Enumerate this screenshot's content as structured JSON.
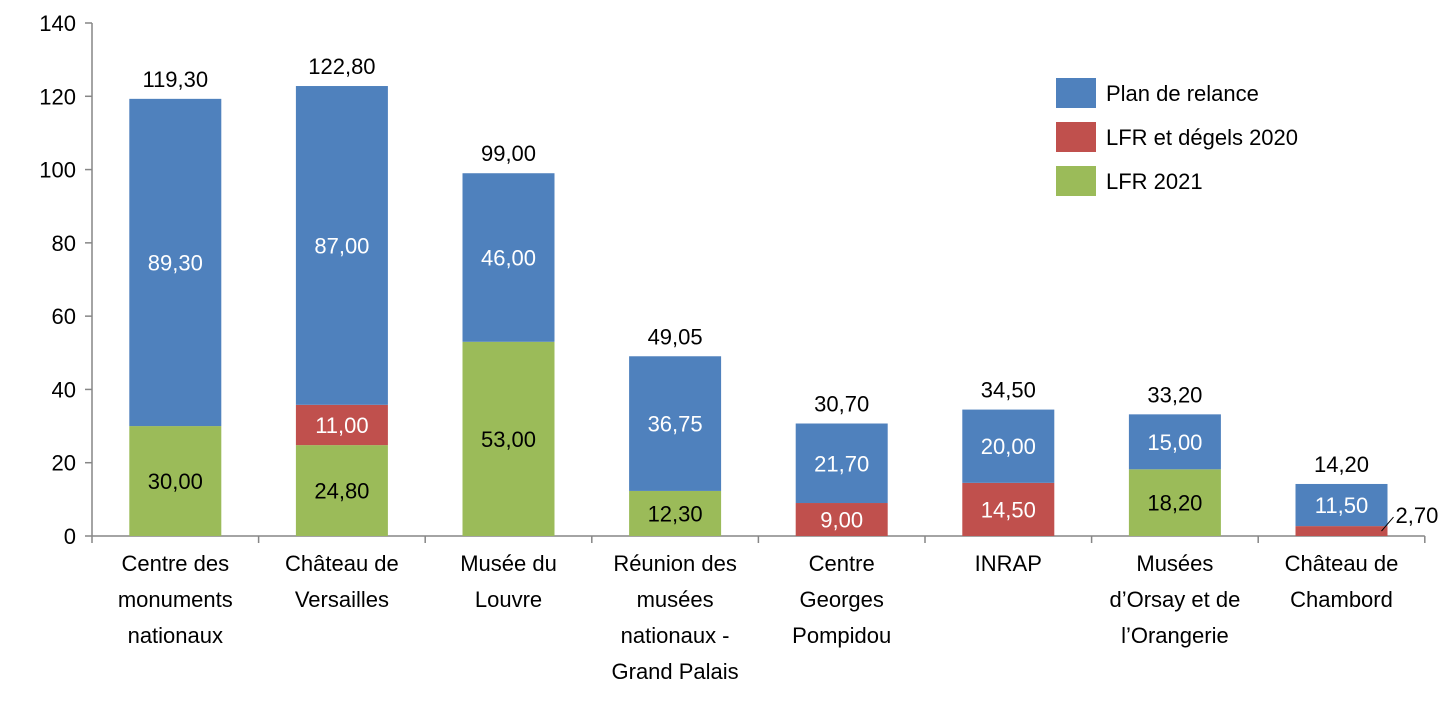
{
  "chart_data": {
    "type": "bar",
    "stacked": true,
    "ylim": [
      0,
      140
    ],
    "yticks": [
      0,
      20,
      40,
      60,
      80,
      100,
      120,
      140
    ],
    "grid": false,
    "legend_position": "top-right",
    "categories": [
      "Centre des monuments nationaux",
      "Château de Versailles",
      "Musée du Louvre",
      "Réunion des musées nationaux - Grand Palais",
      "Centre Georges Pompidou",
      "INRAP",
      "Musées d’Orsay et de l’Orangerie",
      "Château de Chambord"
    ],
    "category_lines": [
      [
        "Centre des",
        "monuments",
        "nationaux"
      ],
      [
        "Château de",
        "Versailles"
      ],
      [
        "Musée du",
        "Louvre"
      ],
      [
        "Réunion des",
        "musées",
        "nationaux -",
        "Grand Palais"
      ],
      [
        "Centre",
        "Georges",
        "Pompidou"
      ],
      [
        "INRAP"
      ],
      [
        "Musées",
        "d’Orsay et de",
        "l’Orangerie"
      ],
      [
        "Château de",
        "Chambord"
      ]
    ],
    "series": [
      {
        "name": "LFR 2021",
        "color": "#9BBB59",
        "values": [
          30.0,
          24.8,
          53.0,
          12.3,
          null,
          null,
          18.2,
          null
        ],
        "labels": [
          "30,00",
          "24,80",
          "53,00",
          "12,30",
          "",
          "",
          "18,20",
          ""
        ]
      },
      {
        "name": "LFR et dégels 2020",
        "color": "#C0504D",
        "values": [
          null,
          11.0,
          null,
          null,
          9.0,
          14.5,
          null,
          2.7
        ],
        "labels": [
          "",
          "11,00",
          "",
          "",
          "9,00",
          "14,50",
          "",
          "2,70"
        ]
      },
      {
        "name": "Plan de relance",
        "color": "#4F81BD",
        "values": [
          89.3,
          87.0,
          46.0,
          36.75,
          21.7,
          20.0,
          15.0,
          11.5
        ],
        "labels": [
          "89,30",
          "87,00",
          "46,00",
          "36,75",
          "21,70",
          "20,00",
          "15,00",
          "11,50"
        ]
      }
    ],
    "totals": [
      "119,30",
      "122,80",
      "99,00",
      "49,05",
      "30,70",
      "34,50",
      "33,20",
      "14,20"
    ],
    "legend_order": [
      "Plan de relance",
      "LFR et dégels 2020",
      "LFR 2021"
    ]
  }
}
